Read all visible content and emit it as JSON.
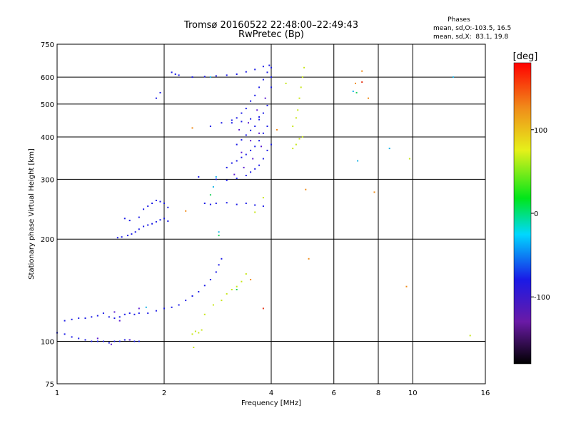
{
  "chart_data": {
    "type": "scatter",
    "title": "Tromsø 20160522 22:48:00–22:49:43",
    "subtitle": "RwPretec (Bp)",
    "xlabel": "Frequency [MHz]",
    "ylabel": "Stationary phase Virtual Height [km]",
    "x_scale": "log",
    "y_scale": "log",
    "xlim": [
      1,
      16
    ],
    "ylim": [
      75,
      750
    ],
    "x_ticks": [
      1,
      2,
      4,
      6,
      8,
      10,
      16
    ],
    "x_tick_labels": [
      "1",
      "2",
      "4",
      "6",
      "8",
      "10",
      "16"
    ],
    "y_ticks": [
      75,
      100,
      200,
      300,
      400,
      500,
      600,
      750
    ],
    "y_tick_labels": [
      "75",
      "100",
      "200",
      "300",
      "400",
      "500",
      "600",
      "750"
    ],
    "grid": true,
    "stats": {
      "heading": "Phases",
      "line_o": "mean, sd,O:-103.5, 16.5",
      "line_x": "mean, sd,X:  83.1, 19.8"
    },
    "colorbar": {
      "label": "[deg]",
      "range": [
        -180,
        180
      ],
      "ticks": [
        100,
        0,
        -100
      ],
      "tick_labels": [
        "100",
        "0",
        "-100"
      ]
    },
    "series": [
      {
        "color": "#1a1ae6",
        "points": [
          [
            1.0,
            106
          ],
          [
            1.05,
            105
          ],
          [
            1.1,
            103
          ],
          [
            1.15,
            102
          ],
          [
            1.2,
            101
          ],
          [
            1.25,
            100
          ],
          [
            1.3,
            100
          ],
          [
            1.35,
            100
          ],
          [
            1.4,
            99
          ],
          [
            1.45,
            100
          ],
          [
            1.5,
            100
          ],
          [
            1.55,
            101
          ],
          [
            1.6,
            101
          ],
          [
            1.65,
            100
          ],
          [
            1.7,
            100
          ],
          [
            1.05,
            115
          ],
          [
            1.1,
            116
          ],
          [
            1.15,
            117
          ],
          [
            1.2,
            117
          ],
          [
            1.25,
            118
          ],
          [
            1.3,
            119
          ],
          [
            1.35,
            121
          ],
          [
            1.4,
            118
          ],
          [
            1.45,
            117
          ],
          [
            1.5,
            118
          ],
          [
            1.55,
            120
          ],
          [
            1.6,
            121
          ],
          [
            1.65,
            120
          ],
          [
            1.7,
            121
          ],
          [
            1.8,
            121
          ],
          [
            1.9,
            123
          ],
          [
            2.0,
            125
          ],
          [
            2.1,
            126
          ],
          [
            2.2,
            128
          ],
          [
            2.3,
            132
          ],
          [
            2.4,
            136
          ],
          [
            2.5,
            140
          ],
          [
            2.6,
            146
          ],
          [
            2.7,
            152
          ],
          [
            2.8,
            160
          ],
          [
            2.85,
            168
          ],
          [
            2.9,
            175
          ],
          [
            1.48,
            202
          ],
          [
            1.52,
            203
          ],
          [
            1.58,
            205
          ],
          [
            1.62,
            207
          ],
          [
            1.66,
            210
          ],
          [
            1.7,
            214
          ],
          [
            1.75,
            218
          ],
          [
            1.8,
            220
          ],
          [
            1.85,
            222
          ],
          [
            1.9,
            225
          ],
          [
            1.95,
            228
          ],
          [
            2.0,
            230
          ],
          [
            2.05,
            226
          ],
          [
            1.55,
            230
          ],
          [
            1.6,
            227
          ],
          [
            1.7,
            232
          ],
          [
            1.75,
            245
          ],
          [
            1.8,
            250
          ],
          [
            1.85,
            255
          ],
          [
            1.9,
            260
          ],
          [
            1.95,
            258
          ],
          [
            2.0,
            255
          ],
          [
            2.05,
            248
          ],
          [
            2.6,
            255
          ],
          [
            2.7,
            253
          ],
          [
            2.8,
            255
          ],
          [
            3.0,
            256
          ],
          [
            3.2,
            253
          ],
          [
            3.4,
            255
          ],
          [
            3.6,
            252
          ],
          [
            3.8,
            250
          ],
          [
            2.5,
            305
          ],
          [
            2.8,
            300
          ],
          [
            3.0,
            298
          ],
          [
            3.2,
            302
          ],
          [
            3.4,
            308
          ],
          [
            3.5,
            315
          ],
          [
            3.6,
            322
          ],
          [
            3.7,
            330
          ],
          [
            3.8,
            345
          ],
          [
            3.9,
            365
          ],
          [
            4.0,
            380
          ],
          [
            3.0,
            325
          ],
          [
            3.1,
            335
          ],
          [
            3.2,
            340
          ],
          [
            3.3,
            348
          ],
          [
            3.4,
            355
          ],
          [
            3.5,
            365
          ],
          [
            3.6,
            375
          ],
          [
            3.7,
            390
          ],
          [
            3.8,
            410
          ],
          [
            3.9,
            430
          ],
          [
            3.2,
            380
          ],
          [
            3.3,
            392
          ],
          [
            3.4,
            405
          ],
          [
            3.5,
            418
          ],
          [
            3.6,
            430
          ],
          [
            3.7,
            450
          ],
          [
            3.8,
            470
          ],
          [
            3.9,
            495
          ],
          [
            3.1,
            440
          ],
          [
            3.2,
            455
          ],
          [
            3.3,
            470
          ],
          [
            3.4,
            485
          ],
          [
            3.5,
            510
          ],
          [
            3.6,
            530
          ],
          [
            3.7,
            560
          ],
          [
            3.8,
            590
          ],
          [
            3.9,
            620
          ],
          [
            3.95,
            650
          ],
          [
            2.2,
            608
          ],
          [
            2.4,
            600
          ],
          [
            2.6,
            602
          ],
          [
            2.8,
            605
          ],
          [
            3.0,
            608
          ],
          [
            3.2,
            612
          ],
          [
            3.4,
            622
          ],
          [
            3.6,
            632
          ],
          [
            3.8,
            645
          ],
          [
            2.1,
            620
          ],
          [
            2.15,
            612
          ],
          [
            1.9,
            520
          ],
          [
            1.95,
            540
          ],
          [
            2.7,
            430
          ],
          [
            2.9,
            440
          ],
          [
            3.1,
            448
          ],
          [
            3.3,
            444
          ],
          [
            3.5,
            452
          ],
          [
            3.7,
            458
          ],
          [
            4.0,
            560
          ],
          [
            4.0,
            600
          ],
          [
            4.0,
            640
          ]
        ]
      },
      {
        "color": "#5a1ad2",
        "points": [
          [
            1.3,
            102
          ],
          [
            1.42,
            98
          ],
          [
            1.6,
            101
          ],
          [
            1.45,
            122
          ],
          [
            1.5,
            115
          ],
          [
            1.7,
            125
          ],
          [
            3.15,
            310
          ],
          [
            3.35,
            325
          ],
          [
            3.55,
            345
          ],
          [
            3.75,
            375
          ],
          [
            3.25,
            420
          ],
          [
            3.45,
            440
          ],
          [
            3.65,
            480
          ],
          [
            3.85,
            520
          ],
          [
            3.3,
            360
          ],
          [
            3.5,
            390
          ],
          [
            3.7,
            410
          ]
        ]
      },
      {
        "color": "#1ab4e6",
        "points": [
          [
            1.78,
            126
          ],
          [
            2.7,
            600
          ],
          [
            2.75,
            285
          ],
          [
            2.8,
            305
          ],
          [
            2.85,
            210
          ],
          [
            6.8,
            545
          ],
          [
            7.0,
            340
          ],
          [
            8.6,
            370
          ],
          [
            13.0,
            600
          ]
        ]
      },
      {
        "color": "#1ad25a",
        "points": [
          [
            2.7,
            270
          ],
          [
            3.2,
            142
          ],
          [
            6.95,
            540
          ],
          [
            2.85,
            205
          ]
        ]
      },
      {
        "color": "#c8e61a",
        "points": [
          [
            2.4,
            105
          ],
          [
            2.45,
            107
          ],
          [
            2.5,
            106
          ],
          [
            2.55,
            108
          ],
          [
            2.42,
            96
          ],
          [
            2.6,
            120
          ],
          [
            2.75,
            128
          ],
          [
            2.9,
            132
          ],
          [
            3.0,
            138
          ],
          [
            3.1,
            142
          ],
          [
            3.2,
            145
          ],
          [
            3.3,
            150
          ],
          [
            3.4,
            158
          ],
          [
            4.6,
            370
          ],
          [
            4.7,
            380
          ],
          [
            4.8,
            395
          ],
          [
            4.9,
            400
          ],
          [
            4.6,
            430
          ],
          [
            4.7,
            455
          ],
          [
            4.75,
            480
          ],
          [
            4.8,
            520
          ],
          [
            4.85,
            560
          ],
          [
            4.9,
            600
          ],
          [
            4.95,
            640
          ],
          [
            3.6,
            240
          ],
          [
            3.8,
            265
          ],
          [
            4.4,
            575
          ],
          [
            9.8,
            345
          ],
          [
            14.5,
            104
          ]
        ]
      },
      {
        "color": "#f08c1a",
        "points": [
          [
            2.4,
            425
          ],
          [
            4.15,
            420
          ],
          [
            5.0,
            280
          ],
          [
            5.1,
            175
          ],
          [
            6.9,
            575
          ],
          [
            7.2,
            625
          ],
          [
            7.5,
            520
          ],
          [
            7.8,
            275
          ],
          [
            9.6,
            145
          ],
          [
            3.5,
            152
          ],
          [
            2.3,
            242
          ]
        ]
      },
      {
        "color": "#e63214",
        "points": [
          [
            3.8,
            125
          ],
          [
            7.2,
            580
          ]
        ]
      }
    ]
  }
}
